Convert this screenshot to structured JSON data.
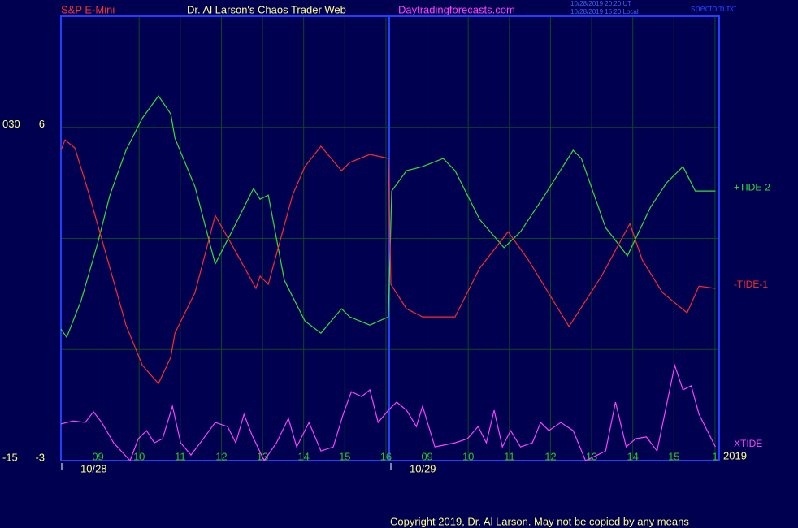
{
  "chart_data": {
    "type": "line",
    "header": {
      "market": "S&P E-Mini",
      "title": "Dr. Al Larson's Chaos Trader Web",
      "site": "Daytradingforecasts.com",
      "stamp_ut": "10/28/2019 20:20 UT",
      "stamp_local": "10/28/2019 15:20 Local",
      "file": "spectom.txt"
    },
    "left_labels": [
      {
        "value": 6,
        "label": "030"
      },
      {
        "value": -3,
        "label": "-15"
      }
    ],
    "ylim": [
      -3,
      9
    ],
    "yticks": [
      -3,
      6
    ],
    "ygrid": [
      0,
      3,
      6
    ],
    "xlim": [
      0,
      16
    ],
    "xticks": [
      {
        "value": 0.9,
        "label": "09"
      },
      {
        "value": 1.9,
        "label": "10"
      },
      {
        "value": 2.9,
        "label": "11"
      },
      {
        "value": 3.9,
        "label": "12"
      },
      {
        "value": 4.9,
        "label": "13"
      },
      {
        "value": 5.9,
        "label": "14"
      },
      {
        "value": 6.9,
        "label": "15"
      },
      {
        "value": 7.9,
        "label": "16"
      },
      {
        "value": 8.9,
        "label": "09"
      },
      {
        "value": 9.9,
        "label": "10"
      },
      {
        "value": 10.9,
        "label": "11"
      },
      {
        "value": 11.9,
        "label": "12"
      },
      {
        "value": 12.9,
        "label": "13"
      },
      {
        "value": 13.9,
        "label": "14"
      },
      {
        "value": 14.9,
        "label": "15"
      },
      {
        "value": 15.9,
        "label": "1"
      }
    ],
    "date_labels": [
      {
        "value": 0,
        "label": "10/28"
      },
      {
        "value": 8,
        "label": "10/29"
      }
    ],
    "year_label": "2019",
    "grid": true,
    "series": [
      {
        "name": "+TIDE-2",
        "color": "#33e033",
        "x": [
          0,
          0.14,
          0.49,
          0.89,
          1.19,
          1.58,
          1.98,
          2.37,
          2.67,
          2.77,
          3.26,
          3.75,
          4.15,
          4.68,
          4.84,
          5.04,
          5.43,
          5.93,
          6.32,
          6.82,
          7.02,
          7.51,
          7.96,
          8.04,
          8.4,
          8.79,
          9.29,
          9.58,
          10.18,
          10.77,
          11.17,
          11.76,
          12.45,
          12.65,
          13.24,
          13.77,
          14.33,
          14.72,
          15.12,
          15.42,
          15.91
        ],
        "values": [
          0.55,
          0.33,
          1.32,
          2.86,
          4.17,
          5.38,
          6.25,
          6.85,
          6.36,
          5.71,
          4.39,
          2.31,
          3.18,
          4.35,
          4.06,
          4.17,
          1.87,
          0.77,
          0.44,
          1.1,
          0.88,
          0.66,
          0.88,
          4.28,
          4.83,
          4.94,
          5.16,
          4.83,
          3.51,
          2.75,
          3.18,
          4.17,
          5.38,
          5.16,
          3.29,
          2.53,
          3.84,
          4.5,
          4.94,
          4.28,
          4.28
        ]
      },
      {
        "name": "-TIDE-1",
        "color": "#ff2a2a",
        "x": [
          0,
          0.1,
          0.34,
          0.69,
          1.19,
          1.58,
          1.98,
          2.37,
          2.67,
          2.77,
          3.26,
          3.75,
          4.25,
          4.74,
          4.84,
          5.04,
          5.63,
          5.93,
          6.32,
          6.82,
          7.02,
          7.51,
          7.96,
          8.02,
          8.4,
          8.79,
          9.58,
          10.18,
          10.87,
          11.36,
          12.35,
          13.14,
          13.83,
          14.13,
          14.62,
          15.22,
          15.51,
          15.91
        ],
        "values": [
          5.38,
          5.66,
          5.44,
          4.17,
          2.2,
          0.66,
          -0.43,
          -0.92,
          -0.21,
          0.44,
          1.54,
          3.62,
          2.64,
          1.65,
          1.98,
          1.76,
          4.17,
          4.94,
          5.49,
          4.83,
          5.05,
          5.27,
          5.16,
          1.76,
          1.1,
          0.88,
          0.88,
          2.2,
          3.18,
          2.42,
          0.62,
          1.98,
          3.4,
          2.42,
          1.54,
          0.99,
          1.71,
          1.65
        ]
      },
      {
        "name": "XTIDE",
        "color": "#ff40ff",
        "x": [
          0,
          0.3,
          0.59,
          0.79,
          0.99,
          1.28,
          1.68,
          1.88,
          2.08,
          2.27,
          2.47,
          2.71,
          2.91,
          3.16,
          3.46,
          3.75,
          4.05,
          4.25,
          4.45,
          4.64,
          4.94,
          5.24,
          5.53,
          5.73,
          6.03,
          6.32,
          6.62,
          6.86,
          7.06,
          7.31,
          7.51,
          7.71,
          7.96,
          8.16,
          8.4,
          8.64,
          8.79,
          9.09,
          9.58,
          9.88,
          10.14,
          10.34,
          10.53,
          10.73,
          10.93,
          11.17,
          11.46,
          11.66,
          11.86,
          12.15,
          12.45,
          12.75,
          13.04,
          13.24,
          13.48,
          13.74,
          13.97,
          14.23,
          14.49,
          14.92,
          15.12,
          15.32,
          15.51,
          15.91
        ],
        "values": [
          -2.01,
          -1.93,
          -1.97,
          -1.68,
          -1.97,
          -2.52,
          -3,
          -2.41,
          -2.19,
          -2.52,
          -2.41,
          -1.53,
          -2.52,
          -2.85,
          -2.41,
          -1.97,
          -2.08,
          -2.52,
          -1.75,
          -2.3,
          -3,
          -2.52,
          -1.86,
          -2.63,
          -1.97,
          -2.74,
          -2.63,
          -1.75,
          -1.14,
          -1.27,
          -1.09,
          -1.97,
          -1.64,
          -1.42,
          -1.64,
          -2.08,
          -1.53,
          -2.63,
          -2.52,
          -2.41,
          -2.08,
          -2.52,
          -1.64,
          -2.63,
          -2.19,
          -2.63,
          -2.52,
          -1.97,
          -2.19,
          -1.97,
          -2.19,
          -3,
          -2.85,
          -2.74,
          -1.42,
          -2.63,
          -2.41,
          -2.36,
          -2.74,
          -0.43,
          -1.09,
          -0.98,
          -1.75,
          -2.63
        ]
      }
    ],
    "day_break": 7.98,
    "copyright": "Copyright 2019, Dr. Al Larson. May not be copied by any means"
  }
}
